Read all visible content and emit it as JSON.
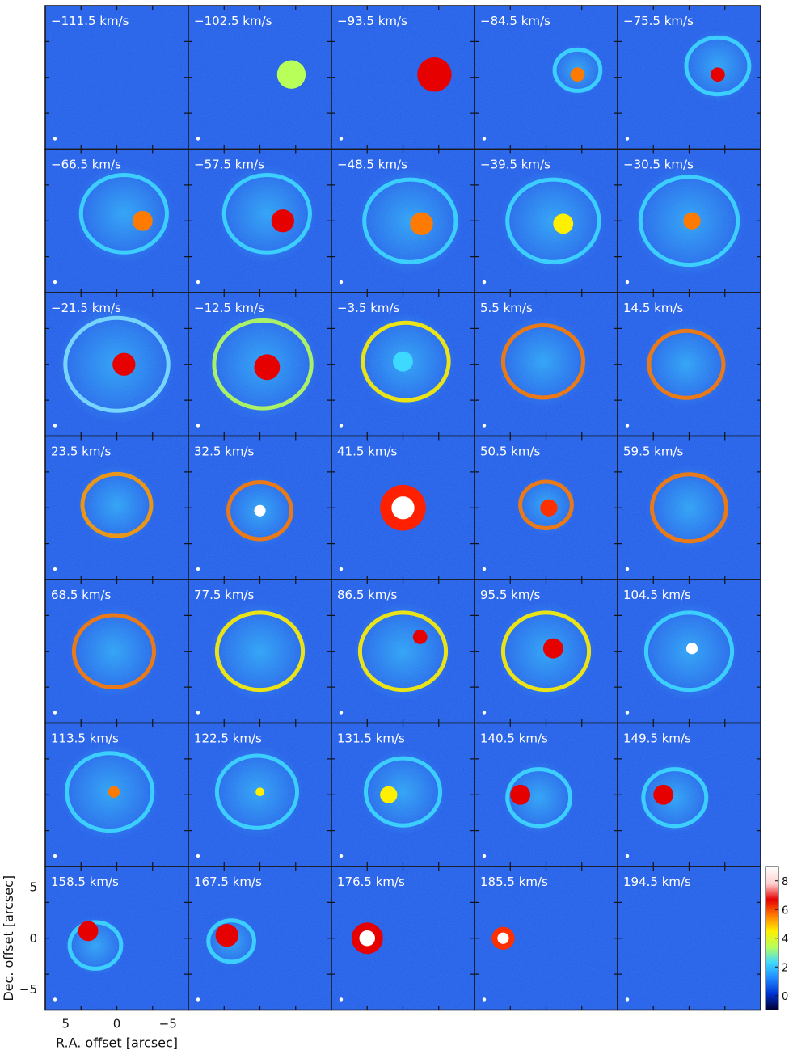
{
  "chart_data": {
    "type": "heatmap",
    "layout": "channel-map grid",
    "rows": 7,
    "cols": 5,
    "panels": [
      "−111.5 km/s",
      "−102.5 km/s",
      "−93.5 km/s",
      "−84.5 km/s",
      "−75.5 km/s",
      "−66.5 km/s",
      "−57.5 km/s",
      "−48.5 km/s",
      "−39.5 km/s",
      "−30.5 km/s",
      "−21.5 km/s",
      "−12.5 km/s",
      "−3.5 km/s",
      "5.5 km/s",
      "14.5 km/s",
      "23.5 km/s",
      "32.5 km/s",
      "41.5 km/s",
      "50.5 km/s",
      "59.5 km/s",
      "68.5 km/s",
      "77.5 km/s",
      "86.5 km/s",
      "95.5 km/s",
      "104.5 km/s",
      "113.5 km/s",
      "122.5 km/s",
      "131.5 km/s",
      "140.5 km/s",
      "149.5 km/s",
      "158.5 km/s",
      "167.5 km/s",
      "176.5 km/s",
      "185.5 km/s",
      "194.5 km/s"
    ],
    "xlabel": "R.A. offset [arcsec]",
    "ylabel": "Dec. offset [arcsec]",
    "xticks": [
      5,
      0,
      -5
    ],
    "yticks": [
      5,
      0,
      -5
    ],
    "xlim": [
      7,
      -7
    ],
    "ylim": [
      -7,
      7
    ],
    "colorbar": {
      "ticks": [
        0,
        2,
        4,
        6,
        8
      ],
      "range": [
        -1,
        9
      ],
      "colors": [
        "#00002e",
        "#0030d0",
        "#1e88ff",
        "#3ed9ff",
        "#b8ff5a",
        "#ffef00",
        "#ff7a00",
        "#e60000",
        "#ffd0d0",
        "#ffffff"
      ]
    },
    "background_color": "#1e5be8"
  }
}
